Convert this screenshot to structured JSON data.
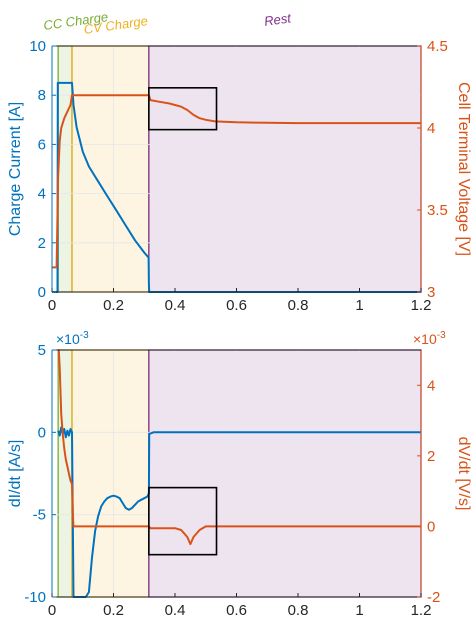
{
  "colors": {
    "current": "#0072BD",
    "voltage": "#D95319",
    "cc_region": "#77AC30",
    "cv_region": "#EDB120",
    "rest_region": "#7E2F8E",
    "zoom_box": "#000000",
    "grid": "#e6e6e6"
  },
  "chart_data": [
    {
      "type": "line",
      "panel": "top",
      "xlabel": "",
      "ylabel_left": "Charge Current [A]",
      "ylabel_right": "Cell Terminal Voltage [V]",
      "xlim": [
        0,
        1.2
      ],
      "ylim_left": [
        0,
        10
      ],
      "ylim_right": [
        3,
        4.5
      ],
      "xticks": [
        "0",
        "0.2",
        "0.4",
        "0.6",
        "0.8",
        "1",
        "1.2"
      ],
      "yticks_left": [
        "0",
        "2",
        "4",
        "6",
        "8",
        "10"
      ],
      "yticks_right": [
        "3",
        "3.5",
        "4",
        "4.5"
      ],
      "regions": [
        {
          "label": "CC Charge",
          "x": [
            0.02,
            0.065
          ],
          "color_key": "cc_region"
        },
        {
          "label": "CV Charge",
          "x": [
            0.065,
            0.315
          ],
          "color_key": "cv_region"
        },
        {
          "label": "Rest",
          "x": [
            0.315,
            1.2
          ],
          "color_key": "rest_region"
        }
      ],
      "zoom_box": {
        "x": [
          0.315,
          0.535
        ],
        "y_left": [
          6.6,
          8.3
        ]
      },
      "series": [
        {
          "axis": "left",
          "color_key": "current",
          "x": [
            0,
            0.018,
            0.019,
            0.02,
            0.065,
            0.07,
            0.08,
            0.1,
            0.12,
            0.15,
            0.18,
            0.21,
            0.24,
            0.27,
            0.3,
            0.314,
            0.315,
            0.316,
            1.2
          ],
          "y": [
            0,
            0,
            8.5,
            8.5,
            8.5,
            7.6,
            6.7,
            5.7,
            5.1,
            4.5,
            3.9,
            3.3,
            2.7,
            2.1,
            1.6,
            1.4,
            0.3,
            0,
            0
          ]
        },
        {
          "axis": "right",
          "color_key": "voltage",
          "x": [
            0,
            0.015,
            0.02,
            0.025,
            0.03,
            0.04,
            0.05,
            0.06,
            0.065,
            0.07,
            0.1,
            0.2,
            0.3,
            0.315,
            0.32,
            0.35,
            0.38,
            0.4,
            0.42,
            0.44,
            0.46,
            0.48,
            0.5,
            0.53,
            0.6,
            0.7,
            0.8,
            0.9,
            1.0,
            1.1,
            1.2
          ],
          "y": [
            3.15,
            3.15,
            3.7,
            3.92,
            4.0,
            4.06,
            4.1,
            4.14,
            4.2,
            4.2,
            4.2,
            4.2,
            4.2,
            4.2,
            4.17,
            4.16,
            4.15,
            4.14,
            4.13,
            4.11,
            4.08,
            4.06,
            4.05,
            4.04,
            4.035,
            4.032,
            4.03,
            4.03,
            4.03,
            4.03,
            4.03
          ]
        }
      ]
    },
    {
      "type": "line",
      "panel": "bottom",
      "xlabel": "Time [hr]",
      "ylabel_left": "dI/dt [A/s]",
      "ylabel_right": "dV/dt [V/s]",
      "xlim": [
        0,
        1.2
      ],
      "ylim_left": [
        -10,
        5
      ],
      "ylim_right": [
        -2,
        5
      ],
      "xticks": [
        "0",
        "0.2",
        "0.4",
        "0.6",
        "0.8",
        "1",
        "1.2"
      ],
      "yticks_left": [
        "-10",
        "-5",
        "0",
        "5"
      ],
      "yticks_right": [
        "-2",
        "0",
        "2",
        "4"
      ],
      "exponent_left": "×10",
      "exponent_left_power": "-3",
      "exponent_right": "×10",
      "exponent_right_power": "-3",
      "regions": [
        {
          "label": "",
          "x": [
            0.02,
            0.065
          ],
          "color_key": "cc_region"
        },
        {
          "label": "",
          "x": [
            0.065,
            0.315
          ],
          "color_key": "cv_region"
        },
        {
          "label": "",
          "x": [
            0.315,
            1.2
          ],
          "color_key": "rest_region"
        }
      ],
      "zoom_box": {
        "x": [
          0.315,
          0.535
        ],
        "y_right": [
          -0.8,
          1.1
        ]
      },
      "series": [
        {
          "axis": "left",
          "color_key": "current",
          "x": [
            0.02,
            0.025,
            0.03,
            0.035,
            0.04,
            0.045,
            0.05,
            0.055,
            0.06,
            0.065,
            0.07,
            0.075,
            0.08,
            0.09,
            0.1,
            0.11,
            0.12,
            0.13,
            0.14,
            0.15,
            0.16,
            0.17,
            0.18,
            0.19,
            0.2,
            0.21,
            0.22,
            0.23,
            0.24,
            0.25,
            0.26,
            0.27,
            0.28,
            0.29,
            0.3,
            0.31,
            0.315,
            0.316,
            0.33,
            1.2
          ],
          "y": [
            0.1,
            -0.2,
            0.3,
            -0.1,
            0.2,
            -0.3,
            0.1,
            -0.2,
            0.2,
            0.0,
            -10,
            -10,
            -10,
            -10,
            -10,
            -10,
            -9.7,
            -7.6,
            -6.0,
            -5.1,
            -4.5,
            -4.2,
            -4.0,
            -3.9,
            -3.85,
            -3.9,
            -4.0,
            -4.3,
            -4.6,
            -4.7,
            -4.6,
            -4.4,
            -4.2,
            -4.1,
            -4.0,
            -3.9,
            -3.7,
            -0.1,
            0,
            0
          ]
        },
        {
          "axis": "right",
          "color_key": "voltage",
          "x": [
            0.02,
            0.022,
            0.025,
            0.03,
            0.035,
            0.04,
            0.045,
            0.05,
            0.055,
            0.06,
            0.065,
            0.068,
            0.07,
            0.1,
            0.2,
            0.3,
            0.315,
            0.32,
            0.35,
            0.38,
            0.4,
            0.42,
            0.44,
            0.45,
            0.46,
            0.48,
            0.5,
            0.53,
            0.6,
            0.7,
            0.8,
            0.9,
            1.0,
            1.1,
            1.2
          ],
          "y": [
            5,
            5,
            4.5,
            3.2,
            2.6,
            2.2,
            1.9,
            1.7,
            1.5,
            1.3,
            1.2,
            0.3,
            0.0,
            0.0,
            0.0,
            0.0,
            0.0,
            -0.05,
            -0.05,
            -0.05,
            -0.05,
            -0.1,
            -0.3,
            -0.5,
            -0.3,
            -0.1,
            0.0,
            0.0,
            0.0,
            0.0,
            0.0,
            0.0,
            0.0,
            0.0,
            0.0
          ]
        }
      ]
    }
  ]
}
